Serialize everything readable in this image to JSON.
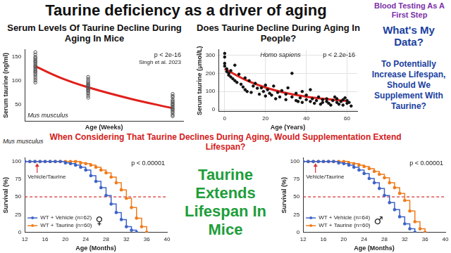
{
  "title": "Taurine deficiency as a driver of aging",
  "header_note": "Blood Testing As A First Step",
  "side_heading": "What's My Data?",
  "side_question": "To Potentially Increase Lifespan, Should We Supplement With Taurine?",
  "question": "When Considering That Taurine Declines During Aging, Would Supplementation Extend Lifespan?",
  "conclusion": "Taurine Extends Lifespan In Mice",
  "organism": "Mus musculus",
  "chart_data": [
    {
      "type": "scatter",
      "title": "Serum Levels Of Taurine Decline During Aging In Mice",
      "x_label": "Age (Weeks)",
      "y_label": "Serum taurine (ng/ml)",
      "xlim": [
        0,
        60
      ],
      "ylim": [
        15,
        165
      ],
      "yticks": [
        50,
        100,
        150
      ],
      "tick_labels": "y",
      "grid": false,
      "marker": "open circle",
      "color": "#555555",
      "x": [
        4,
        4,
        4,
        4,
        4,
        4,
        4,
        4,
        4,
        4,
        4,
        4,
        4,
        4,
        4,
        4,
        4,
        4,
        4,
        4,
        4,
        4,
        24,
        24,
        24,
        24,
        24,
        24,
        24,
        24,
        24,
        24,
        24,
        24,
        24,
        24,
        24,
        24,
        24,
        56,
        56,
        56,
        56,
        56,
        56,
        56,
        56,
        56,
        56,
        56,
        56,
        56,
        56,
        56,
        56,
        56
      ],
      "values": [
        160,
        155,
        150,
        148,
        145,
        142,
        140,
        138,
        135,
        132,
        130,
        128,
        125,
        122,
        120,
        118,
        115,
        112,
        108,
        104,
        100,
        96,
        108,
        104,
        100,
        97,
        94,
        92,
        90,
        88,
        86,
        84,
        82,
        80,
        78,
        75,
        72,
        68,
        64,
        72,
        68,
        65,
        60,
        57,
        55,
        52,
        50,
        48,
        45,
        42,
        40,
        38,
        35,
        32,
        28,
        25
      ],
      "trend": {
        "x": [
          4,
          14,
          24,
          40,
          56
        ],
        "values": [
          130,
          105,
          86,
          62,
          42
        ],
        "color": "#e0201b"
      },
      "p_value": "p < 2e-16",
      "source": "Singh et al. 2023",
      "species": "Mus musculus"
    },
    {
      "type": "scatter",
      "title": "Does Taurine Decline During Aging In People?",
      "x_label": "Age (Years)",
      "y_label": "Serum taurine (μmol/L)",
      "xlim": [
        -3,
        65
      ],
      "ylim": [
        -10,
        330
      ],
      "xticks": [
        0,
        20,
        40,
        60
      ],
      "yticks": [
        0,
        100,
        200,
        300
      ],
      "grid": true,
      "marker": "circle",
      "color": "#111111",
      "x": [
        0,
        0,
        0,
        0,
        1,
        1,
        2,
        2,
        3,
        3,
        4,
        5,
        5,
        6,
        7,
        8,
        9,
        10,
        10,
        11,
        12,
        13,
        14,
        15,
        16,
        17,
        18,
        19,
        20,
        20,
        21,
        22,
        23,
        24,
        25,
        26,
        27,
        28,
        30,
        30,
        31,
        33,
        33,
        35,
        35,
        36,
        37,
        38,
        38,
        40,
        40,
        42,
        42,
        43,
        44,
        45,
        46,
        47,
        48,
        48,
        50,
        50,
        51,
        52,
        53,
        54,
        55,
        55,
        56,
        57,
        58,
        58,
        59,
        60,
        60,
        61,
        62
      ],
      "values": [
        310,
        290,
        255,
        240,
        225,
        210,
        200,
        190,
        215,
        180,
        170,
        245,
        160,
        150,
        195,
        140,
        125,
        175,
        110,
        100,
        160,
        95,
        130,
        145,
        118,
        85,
        120,
        100,
        135,
        75,
        110,
        90,
        80,
        130,
        60,
        95,
        70,
        105,
        55,
        85,
        120,
        200,
        70,
        50,
        90,
        45,
        65,
        100,
        40,
        55,
        80,
        110,
        45,
        60,
        35,
        50,
        70,
        30,
        55,
        40,
        45,
        60,
        35,
        25,
        50,
        70,
        40,
        60,
        30,
        45,
        55,
        25,
        65,
        35,
        50,
        40,
        20
      ],
      "trend": {
        "x": [
          0,
          10,
          20,
          30,
          40,
          50,
          60
        ],
        "values": [
          225,
          165,
          122,
          92,
          72,
          58,
          48
        ],
        "color": "#e0201b"
      },
      "p_value": "p < 2.2e-16",
      "species": "Homo sapiens"
    },
    {
      "type": "line",
      "x_label": "Age (Months)",
      "y_label": "Survival (%)",
      "xlim": [
        12,
        40
      ],
      "ylim": [
        0,
        105
      ],
      "xticks": [
        12,
        16,
        20,
        24,
        28,
        32,
        36,
        40
      ],
      "yticks": [
        0,
        25,
        50,
        75,
        100
      ],
      "grid": false,
      "legend": "bottom-left",
      "x": [
        12,
        13,
        14,
        15,
        16,
        17,
        18,
        19,
        20,
        21,
        22,
        23,
        24,
        25,
        26,
        27,
        28,
        29,
        30,
        31,
        32,
        33,
        34,
        35,
        36,
        37,
        38,
        39,
        40
      ],
      "series": [
        {
          "name": "WT + Vehicle (n=62)",
          "color": "#3e64c8",
          "marker": "circle",
          "line_style": "steps",
          "values": [
            100,
            100,
            100,
            100,
            100,
            100,
            100,
            100,
            98,
            97,
            95,
            92,
            88,
            80,
            72,
            63,
            52,
            40,
            28,
            18,
            8,
            3,
            0,
            null,
            null,
            null,
            null,
            null,
            null
          ]
        },
        {
          "name": "WT + Taurine (n=60)",
          "color": "#f07c1c",
          "marker": "circle",
          "line_style": "steps",
          "values": [
            100,
            100,
            100,
            100,
            100,
            100,
            100,
            100,
            100,
            100,
            100,
            98,
            97,
            95,
            92,
            88,
            84,
            78,
            70,
            60,
            48,
            35,
            20,
            8,
            0,
            null,
            null,
            null,
            null
          ]
        }
      ],
      "reference_line": 50,
      "treatment_label": "Vehicle/Taurine",
      "p_value": "p < 0.00001",
      "sex": "♀"
    },
    {
      "type": "line",
      "x_label": "Age (Months)",
      "y_label": "Survival (%)",
      "xlim": [
        12,
        40
      ],
      "ylim": [
        0,
        105
      ],
      "xticks": [
        12,
        16,
        20,
        24,
        28,
        32,
        36,
        40
      ],
      "yticks": [
        0,
        25,
        50,
        75,
        100
      ],
      "grid": false,
      "legend": "bottom-left",
      "x": [
        12,
        13,
        14,
        15,
        16,
        17,
        18,
        19,
        20,
        21,
        22,
        23,
        24,
        25,
        26,
        27,
        28,
        29,
        30,
        31,
        32,
        33,
        34,
        35,
        36,
        37,
        38,
        39,
        40
      ],
      "series": [
        {
          "name": "WT + Vehicle (n=64)",
          "color": "#3e64c8",
          "marker": "circle",
          "line_style": "steps",
          "values": [
            100,
            100,
            100,
            100,
            100,
            100,
            100,
            98,
            97,
            95,
            92,
            88,
            83,
            76,
            70,
            62,
            52,
            42,
            32,
            22,
            12,
            5,
            0,
            null,
            null,
            null,
            null,
            null,
            null
          ]
        },
        {
          "name": "WT + Taurine (n=60)",
          "color": "#f07c1c",
          "marker": "circle",
          "line_style": "steps",
          "values": [
            100,
            100,
            100,
            100,
            100,
            100,
            100,
            100,
            100,
            98,
            97,
            95,
            93,
            90,
            86,
            82,
            77,
            70,
            63,
            55,
            45,
            30,
            15,
            5,
            0,
            null,
            null,
            null,
            null
          ]
        }
      ],
      "reference_line": 50,
      "treatment_label": "Vehicle/Taurine",
      "p_value": "p < 0.00001",
      "sex": "♂"
    }
  ]
}
